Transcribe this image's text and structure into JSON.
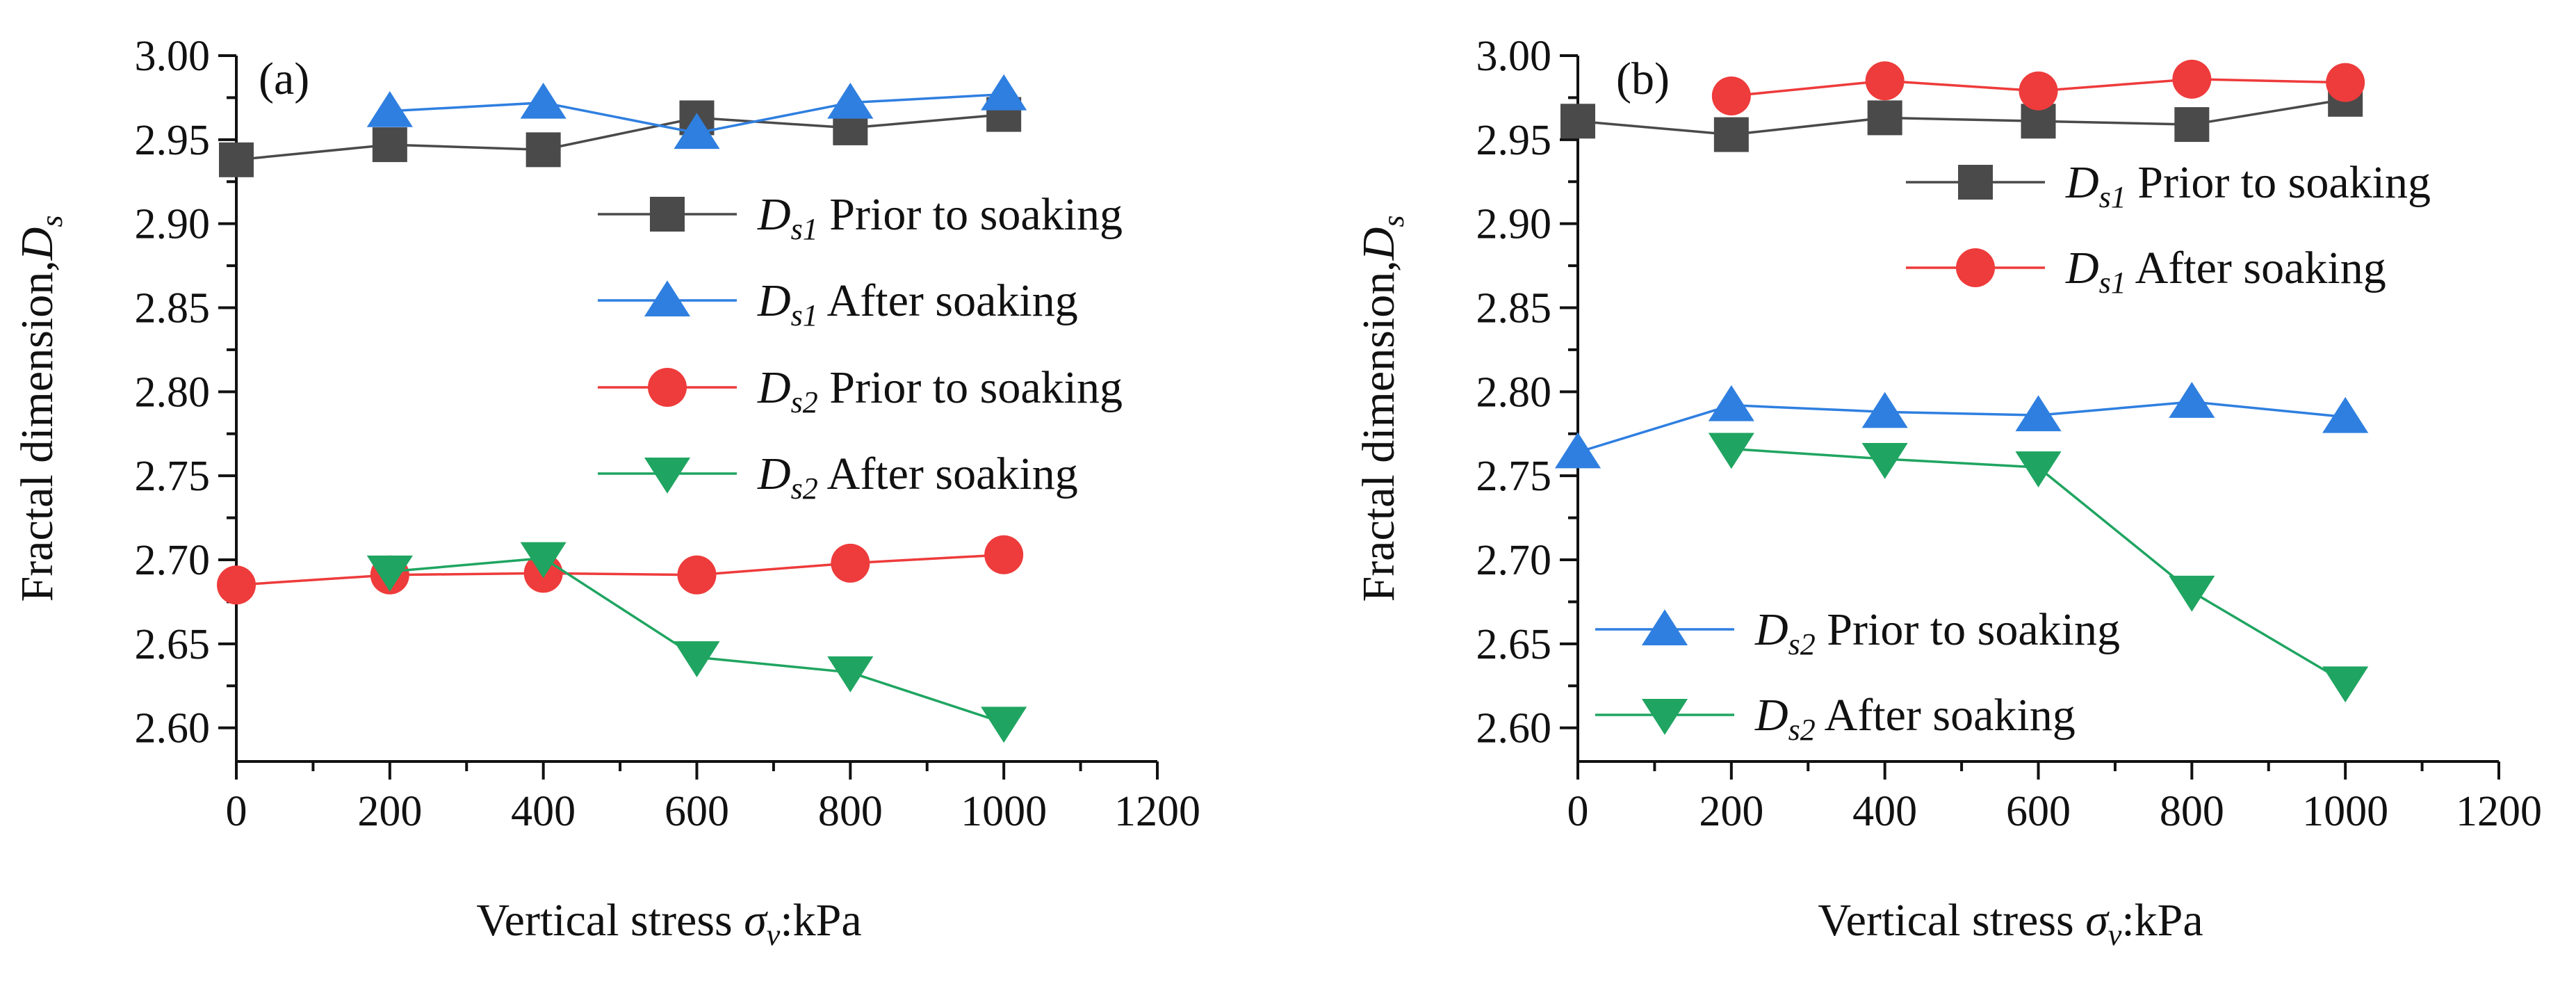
{
  "chart_data": [
    {
      "type": "line",
      "panel_label": "(a)",
      "xlabel": {
        "prefix": "Vertical stress ",
        "symbol": "σ",
        "subscript": "v",
        "suffix": ":kPa"
      },
      "ylabel": {
        "prefix": "Fractal dimension,",
        "symbol": "D",
        "subscript": "s"
      },
      "xlim": [
        0,
        1200
      ],
      "ylim": [
        2.58,
        3.0
      ],
      "xticks": [
        0,
        200,
        400,
        600,
        800,
        1000,
        1200
      ],
      "xtick_labels": [
        "0",
        "200",
        "400",
        "600",
        "800",
        "1000",
        "1200"
      ],
      "yticks": [
        2.6,
        2.65,
        2.7,
        2.75,
        2.8,
        2.85,
        2.9,
        2.95,
        3.0
      ],
      "ytick_labels": [
        "2.60",
        "2.65",
        "2.70",
        "2.75",
        "2.80",
        "2.85",
        "2.90",
        "2.95",
        "3.00"
      ],
      "grid": false,
      "legend_position": "center-right",
      "series": [
        {
          "name": "Ds1 Prior to soaking",
          "symbol": "D",
          "subscript": "s1",
          "label": "Prior to soaking",
          "color": "#4a4a4a",
          "marker": "square",
          "x": [
            0,
            200,
            400,
            600,
            800,
            1000
          ],
          "values": [
            2.938,
            2.947,
            2.944,
            2.963,
            2.957,
            2.965
          ]
        },
        {
          "name": "Ds1 After soaking",
          "symbol": "D",
          "subscript": "s1",
          "label": "After soaking",
          "color": "#2f7fe0",
          "marker": "triangle-up",
          "x": [
            200,
            400,
            600,
            800,
            1000
          ],
          "values": [
            2.967,
            2.972,
            2.954,
            2.972,
            2.977
          ]
        },
        {
          "name": "Ds2 Prior to soaking",
          "symbol": "D",
          "subscript": "s2",
          "label": "Prior to soaking",
          "color": "#ee3b3b",
          "marker": "circle",
          "x": [
            0,
            200,
            400,
            600,
            800,
            1000
          ],
          "values": [
            2.685,
            2.691,
            2.692,
            2.691,
            2.698,
            2.703
          ]
        },
        {
          "name": "Ds2 After soaking",
          "symbol": "D",
          "subscript": "s2",
          "label": "After soaking",
          "color": "#1fa561",
          "marker": "triangle-down",
          "x": [
            200,
            400,
            600,
            800,
            1000
          ],
          "values": [
            2.693,
            2.701,
            2.642,
            2.633,
            2.603
          ]
        }
      ]
    },
    {
      "type": "line",
      "panel_label": "(b)",
      "xlabel": {
        "prefix": "Vertical stress ",
        "symbol": "σ",
        "subscript": "v",
        "suffix": ":kPa"
      },
      "ylabel": {
        "prefix": "Fractal dimension,",
        "symbol": "D",
        "subscript": "s"
      },
      "xlim": [
        0,
        1200
      ],
      "ylim": [
        2.58,
        3.0
      ],
      "xticks": [
        0,
        200,
        400,
        600,
        800,
        1000,
        1200
      ],
      "xtick_labels": [
        "0",
        "200",
        "400",
        "600",
        "800",
        "1000",
        "1200"
      ],
      "yticks": [
        2.6,
        2.65,
        2.7,
        2.75,
        2.8,
        2.85,
        2.9,
        2.95,
        3.0
      ],
      "ytick_labels": [
        "2.60",
        "2.65",
        "2.70",
        "2.75",
        "2.80",
        "2.85",
        "2.90",
        "2.95",
        "3.00"
      ],
      "grid": false,
      "legend_position": "split: upper-right and lower-left",
      "series": [
        {
          "name": "Ds1 Prior to soaking",
          "symbol": "D",
          "subscript": "s1",
          "label": "Prior to soaking",
          "color": "#4a4a4a",
          "marker": "square",
          "x": [
            0,
            200,
            400,
            600,
            800,
            1000
          ],
          "values": [
            2.961,
            2.953,
            2.963,
            2.961,
            2.959,
            2.974
          ]
        },
        {
          "name": "Ds1 After soaking",
          "symbol": "D",
          "subscript": "s1",
          "label": "After soaking",
          "color": "#ee3b3b",
          "marker": "circle",
          "x": [
            200,
            400,
            600,
            800,
            1000
          ],
          "values": [
            2.976,
            2.985,
            2.979,
            2.986,
            2.984
          ]
        },
        {
          "name": "Ds2 Prior to soaking",
          "symbol": "D",
          "subscript": "s2",
          "label": "Prior to soaking",
          "color": "#2f7fe0",
          "marker": "triangle-up",
          "x": [
            0,
            200,
            400,
            600,
            800,
            1000
          ],
          "values": [
            2.764,
            2.792,
            2.788,
            2.786,
            2.794,
            2.785
          ]
        },
        {
          "name": "Ds2 After soaking",
          "symbol": "D",
          "subscript": "s2",
          "label": "After soaking",
          "color": "#1fa561",
          "marker": "triangle-down",
          "x": [
            200,
            400,
            600,
            800,
            1000
          ],
          "values": [
            2.766,
            2.76,
            2.755,
            2.681,
            2.627
          ]
        }
      ]
    }
  ]
}
